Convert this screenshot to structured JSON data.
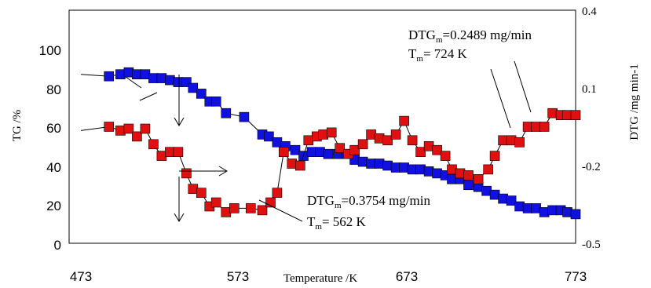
{
  "chart_data": {
    "type": "scatter",
    "title": "",
    "xlabel": "Temperature /K",
    "ylabel_left": "TG /%",
    "ylabel_right": "DTG /mg min-1",
    "xlim": [
      473,
      773
    ],
    "ylim_left": [
      0,
      120
    ],
    "ylim_right": [
      -0.5,
      0.4
    ],
    "x_ticks": [
      "473",
      "573",
      "673",
      "773"
    ],
    "y_left_ticks": [
      "0",
      "20",
      "40",
      "60",
      "80",
      "100"
    ],
    "y_right_ticks": [
      "-0.5",
      "-0.2",
      "0.1",
      "0.4"
    ],
    "grid": false,
    "legend": "none",
    "series": [
      {
        "axis": "left",
        "color": "#1010e0",
        "marker": "square",
        "x": [
          473,
          490,
          497,
          502,
          507,
          512,
          517,
          522,
          527,
          532,
          537,
          541,
          546,
          551,
          555,
          561,
          572,
          583,
          587,
          592,
          597,
          603,
          608,
          613,
          618,
          623,
          629,
          634,
          639,
          644,
          649,
          654,
          659,
          664,
          669,
          674,
          679,
          684,
          689,
          694,
          698,
          703,
          708,
          714,
          719,
          724,
          729,
          734,
          739,
          744,
          749,
          754,
          759,
          764,
          768,
          773
        ],
        "y": [
          87,
          86,
          87,
          88,
          87,
          87,
          85,
          85,
          84,
          83,
          83,
          80,
          77,
          73,
          73,
          67,
          65,
          56,
          55,
          52,
          50,
          48,
          45,
          47,
          47,
          46,
          46,
          46,
          43,
          42,
          41,
          41,
          40,
          39,
          39,
          38,
          38,
          37,
          36,
          35,
          33,
          33,
          30,
          29,
          27,
          25,
          23,
          22,
          19,
          18,
          18,
          16,
          17,
          17,
          16,
          15
        ]
      },
      {
        "axis": "left",
        "color": "#e01010",
        "marker": "square",
        "x": [
          473,
          490,
          497,
          502,
          507,
          512,
          517,
          522,
          527,
          532,
          537,
          541,
          546,
          551,
          555,
          561,
          566,
          576,
          583,
          588,
          592,
          596,
          601,
          606,
          611,
          616,
          620,
          625,
          630,
          635,
          639,
          644,
          649,
          654,
          659,
          664,
          669,
          674,
          679,
          684,
          689,
          694,
          698,
          703,
          708,
          714,
          720,
          724,
          729,
          734,
          739,
          744,
          749,
          754,
          759,
          764,
          768,
          773
        ],
        "y": [
          58,
          60,
          58,
          59,
          55,
          59,
          51,
          45,
          47,
          47,
          36,
          28,
          26,
          19,
          21,
          16,
          18,
          18,
          17,
          21,
          26,
          47,
          41,
          40,
          53,
          55,
          56,
          57,
          49,
          46,
          48,
          51,
          56,
          54,
          53,
          56,
          63,
          53,
          47,
          50,
          48,
          45,
          38,
          36,
          35,
          33,
          38,
          45,
          53,
          53,
          52,
          60,
          60,
          60,
          67,
          66,
          66,
          66
        ]
      }
    ],
    "arrows_text": "",
    "annotations": [
      {
        "lines": [
          {
            "base": "DTG",
            "sub": "m",
            "rest": "=0.2489  mg/min"
          },
          {
            "base": "T",
            "sub": "m",
            "rest": "= 724 K"
          }
        ]
      },
      {
        "lines": [
          {
            "base": "DTG",
            "sub": "m",
            "rest": "=0.3754 mg/min"
          },
          {
            "base": "T",
            "sub": "m",
            "rest": "= 562 K"
          }
        ]
      }
    ]
  }
}
